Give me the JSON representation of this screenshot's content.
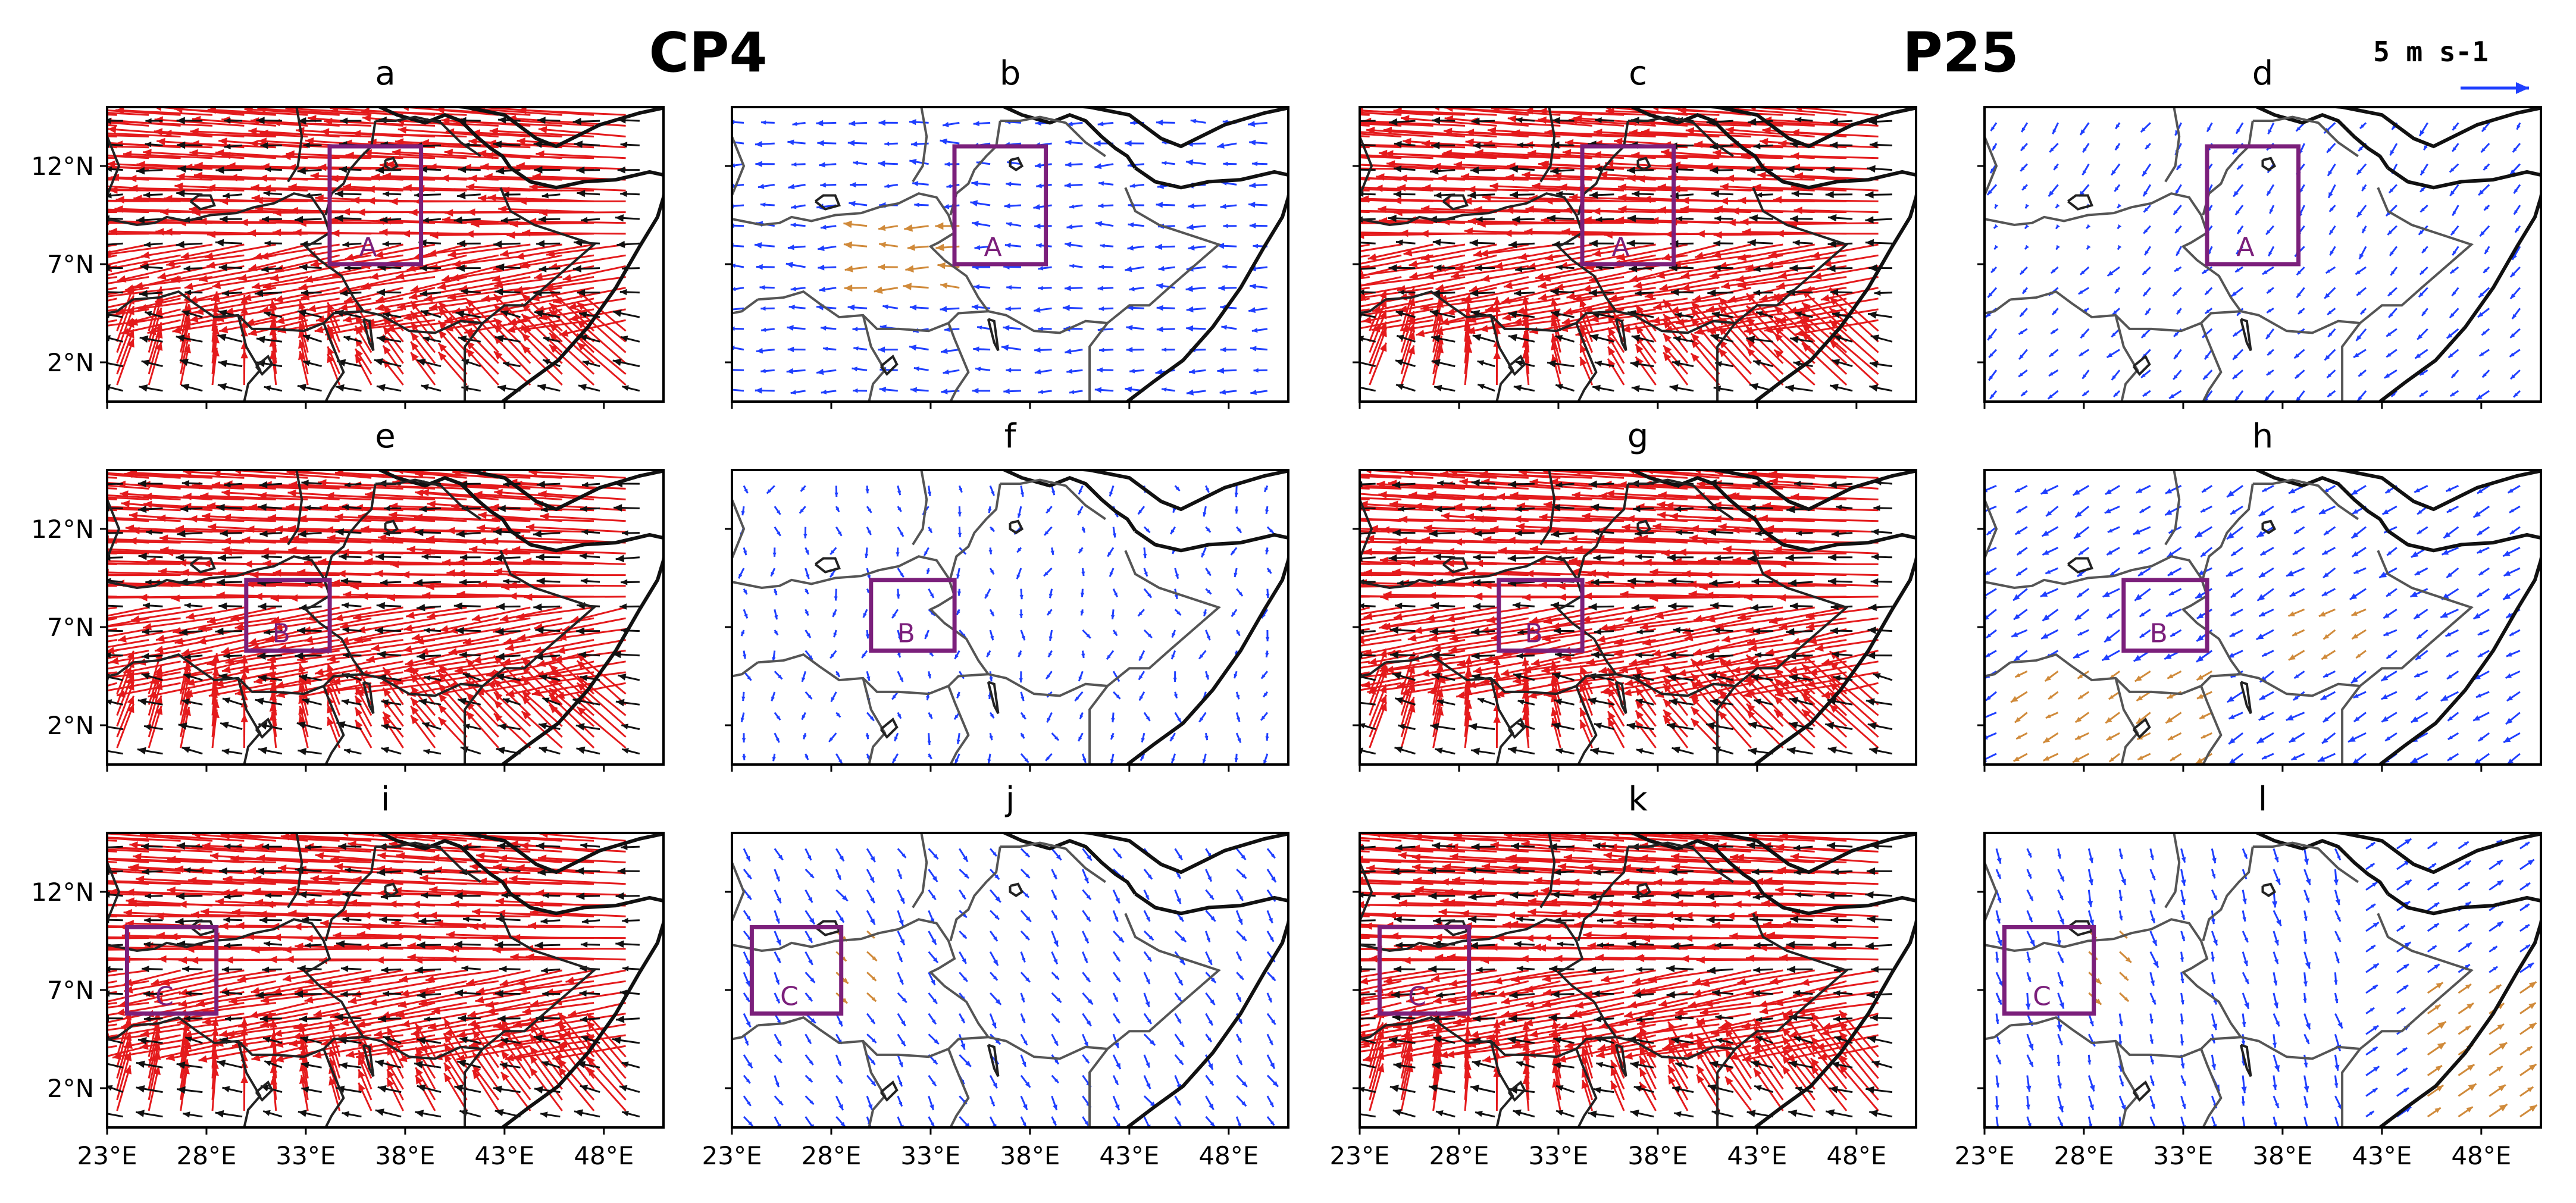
{
  "figure": {
    "model_titles": [
      "CP4",
      "P25"
    ],
    "reference_vector": {
      "label": "5 m s-1",
      "magnitude": 5,
      "unit": "m s-1"
    },
    "colors": {
      "black_arrows": "#111111",
      "red_arrows": "#e41a1c",
      "blue_arrows": "#1f3fff",
      "orange_arrows": "#d08a3a",
      "box": "#7b1f7b",
      "coast": "#111111"
    }
  },
  "chart_data": {
    "type": "vector-field-maps",
    "layout": {
      "rows": 3,
      "cols": 4
    },
    "x_ticks": [
      "23°E",
      "28°E",
      "33°E",
      "38°E",
      "43°E",
      "48°E"
    ],
    "x_tick_values": [
      23,
      28,
      33,
      38,
      43,
      48
    ],
    "y_ticks": [
      "12°N",
      "7°N",
      "2°N"
    ],
    "y_tick_values": [
      12,
      7,
      2
    ],
    "lon_range": [
      23,
      51
    ],
    "lat_range": [
      0,
      15
    ],
    "panels": [
      {
        "label": "a",
        "model": "CP4",
        "style": "full",
        "box": {
          "name": "A",
          "lon": [
            34.2,
            38.8
          ],
          "lat": [
            7.0,
            13.0
          ]
        }
      },
      {
        "label": "b",
        "model": "CP4",
        "style": "diff",
        "box": {
          "name": "A",
          "lon": [
            34.2,
            38.8
          ],
          "lat": [
            7.0,
            13.0
          ]
        }
      },
      {
        "label": "c",
        "model": "P25",
        "style": "full",
        "box": {
          "name": "A",
          "lon": [
            34.2,
            38.8
          ],
          "lat": [
            7.0,
            13.0
          ]
        }
      },
      {
        "label": "d",
        "model": "P25",
        "style": "diff",
        "box": {
          "name": "A",
          "lon": [
            34.2,
            38.8
          ],
          "lat": [
            7.0,
            13.0
          ]
        }
      },
      {
        "label": "e",
        "model": "CP4",
        "style": "full",
        "box": {
          "name": "B",
          "lon": [
            30.0,
            34.2
          ],
          "lat": [
            5.8,
            9.4
          ]
        }
      },
      {
        "label": "f",
        "model": "CP4",
        "style": "diff",
        "box": {
          "name": "B",
          "lon": [
            30.0,
            34.2
          ],
          "lat": [
            5.8,
            9.4
          ]
        }
      },
      {
        "label": "g",
        "model": "P25",
        "style": "full",
        "box": {
          "name": "B",
          "lon": [
            30.0,
            34.2
          ],
          "lat": [
            5.8,
            9.4
          ]
        }
      },
      {
        "label": "h",
        "model": "P25",
        "style": "diff",
        "box": {
          "name": "B",
          "lon": [
            30.0,
            34.2
          ],
          "lat": [
            5.8,
            9.4
          ]
        }
      },
      {
        "label": "i",
        "model": "CP4",
        "style": "full",
        "box": {
          "name": "C",
          "lon": [
            24.0,
            28.5
          ],
          "lat": [
            5.8,
            10.2
          ]
        }
      },
      {
        "label": "j",
        "model": "CP4",
        "style": "diff",
        "box": {
          "name": "C",
          "lon": [
            24.0,
            28.5
          ],
          "lat": [
            5.8,
            10.2
          ]
        }
      },
      {
        "label": "k",
        "model": "P25",
        "style": "full",
        "box": {
          "name": "C",
          "lon": [
            24.0,
            28.5
          ],
          "lat": [
            5.8,
            10.2
          ]
        }
      },
      {
        "label": "l",
        "model": "P25",
        "style": "diff",
        "box": {
          "name": "C",
          "lon": [
            24.0,
            28.5
          ],
          "lat": [
            5.8,
            10.2
          ]
        }
      }
    ]
  }
}
